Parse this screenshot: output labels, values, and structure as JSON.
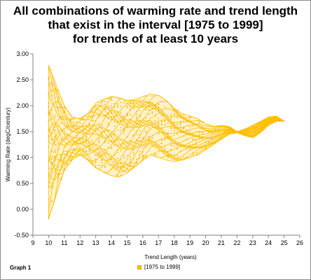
{
  "chart_data": {
    "type": "scatter",
    "title": [
      "All combinations of warming rate and trend length",
      "that exist in the interval [1975 to 1999]",
      "for trends of at least 10 years"
    ],
    "xlabel": "Trend Length  (years)",
    "ylabel": "Warming Rate (degC/century)",
    "xlim": [
      9,
      26
    ],
    "ylim": [
      -0.5,
      3.0
    ],
    "x_ticks": [
      "9",
      "10",
      "11",
      "12",
      "13",
      "14",
      "15",
      "16",
      "17",
      "18",
      "19",
      "20",
      "21",
      "22",
      "23",
      "24",
      "25",
      "26"
    ],
    "y_ticks": [
      "3.00",
      "2.50",
      "2.00",
      "1.50",
      "1.00",
      "0.50",
      "0.00",
      "-0.50"
    ],
    "grid": false,
    "legend_position": "bottom",
    "series": [
      {
        "name": "[1975 to 1999]",
        "color": "#ffc000",
        "envelope": {
          "x": [
            10.0,
            10.3,
            10.6,
            11.0,
            11.5,
            12.0,
            12.5,
            13.0,
            13.5,
            14.0,
            14.5,
            15.0,
            15.5,
            16.0,
            16.5,
            17.0,
            17.5,
            18.0,
            18.5,
            19.0,
            19.5,
            20.0,
            20.5,
            21.0,
            21.5,
            22.0,
            22.5,
            23.0,
            23.5,
            24.0,
            24.5,
            25.0
          ],
          "upper": [
            2.78,
            2.55,
            2.3,
            2.0,
            1.78,
            1.75,
            1.85,
            2.05,
            2.12,
            2.18,
            2.15,
            2.1,
            2.12,
            2.18,
            2.22,
            2.2,
            2.1,
            1.95,
            1.85,
            1.8,
            1.75,
            1.65,
            1.6,
            1.62,
            1.6,
            1.5,
            1.55,
            1.62,
            1.7,
            1.78,
            1.8,
            1.7
          ],
          "lower": [
            -0.18,
            0.1,
            0.4,
            0.75,
            0.95,
            1.05,
            0.95,
            0.8,
            0.72,
            0.65,
            0.62,
            0.7,
            0.82,
            0.95,
            1.05,
            1.0,
            0.95,
            0.92,
            0.95,
            1.0,
            1.05,
            1.15,
            1.25,
            1.35,
            1.45,
            1.48,
            1.42,
            1.38,
            1.48,
            1.62,
            1.7,
            1.7
          ]
        }
      }
    ]
  },
  "footer": {
    "graph_label": "Graph 1"
  }
}
